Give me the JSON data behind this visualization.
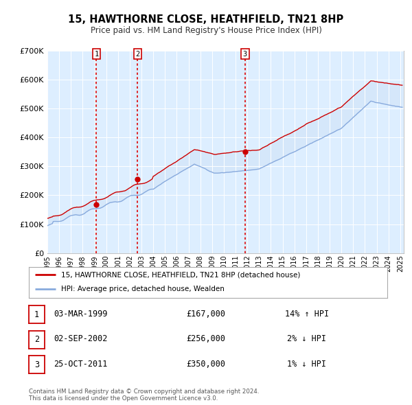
{
  "title": "15, HAWTHORNE CLOSE, HEATHFIELD, TN21 8HP",
  "subtitle": "Price paid vs. HM Land Registry's House Price Index (HPI)",
  "ylim": [
    0,
    700000
  ],
  "yticks": [
    0,
    100000,
    200000,
    300000,
    400000,
    500000,
    600000,
    700000
  ],
  "ytick_labels": [
    "£0",
    "£100K",
    "£200K",
    "£300K",
    "£400K",
    "£500K",
    "£600K",
    "£700K"
  ],
  "background_color": "#ffffff",
  "plot_bg_color": "#ddeeff",
  "grid_color": "#ffffff",
  "line1_color": "#cc0000",
  "line2_color": "#88aadd",
  "fill_color": "#ccdff5",
  "sale_years": [
    1999.17,
    2002.67,
    2011.81
  ],
  "sale_vals": [
    167000,
    256000,
    350000
  ],
  "sale_labels": [
    "1",
    "2",
    "3"
  ],
  "vline_color": "#dd0000",
  "legend_line1": "15, HAWTHORNE CLOSE, HEATHFIELD, TN21 8HP (detached house)",
  "legend_line2": "HPI: Average price, detached house, Wealden",
  "table_data": [
    {
      "num": "1",
      "date": "03-MAR-1999",
      "price": "£167,000",
      "hpi": "14% ↑ HPI"
    },
    {
      "num": "2",
      "date": "02-SEP-2002",
      "price": "£256,000",
      "hpi": "2% ↓ HPI"
    },
    {
      "num": "3",
      "date": "25-OCT-2011",
      "price": "£350,000",
      "hpi": "1% ↓ HPI"
    }
  ],
  "footer": "Contains HM Land Registry data © Crown copyright and database right 2024.\nThis data is licensed under the Open Government Licence v3.0.",
  "xstart": 1995.0,
  "xend": 2025.3
}
